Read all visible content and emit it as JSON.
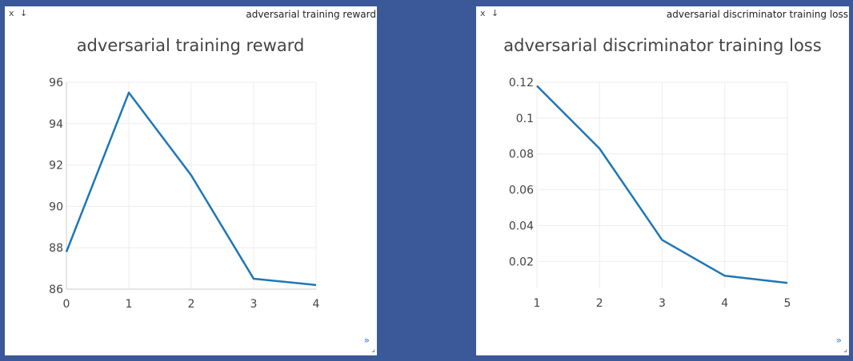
{
  "panes": [
    {
      "header_title": "adversarial training reward",
      "close_label": "x",
      "download_label": "↓",
      "expand_label": "»",
      "resize_label": "⌟",
      "chart_data": {
        "type": "line",
        "title": "adversarial training reward",
        "x": [
          0,
          1,
          2,
          3,
          4
        ],
        "series": [
          {
            "values": [
              87.8,
              95.5,
              91.5,
              86.5,
              86.2
            ]
          }
        ],
        "xlim": [
          0,
          4
        ],
        "ylim": [
          86,
          96
        ],
        "xticks": [
          "0",
          "1",
          "2",
          "3",
          "4"
        ],
        "yticks": [
          "86",
          "88",
          "90",
          "92",
          "94",
          "96"
        ],
        "grid": true,
        "color": "#1f77b4"
      }
    },
    {
      "header_title": "adversarial discriminator training loss",
      "close_label": "x",
      "download_label": "↓",
      "expand_label": "»",
      "resize_label": "⌟",
      "chart_data": {
        "type": "line",
        "title": "adversarial discriminator training loss",
        "x": [
          1,
          2,
          3,
          4,
          5
        ],
        "series": [
          {
            "values": [
              0.118,
              0.083,
              0.032,
              0.012,
              0.008
            ]
          }
        ],
        "xlim": [
          1,
          5
        ],
        "ylim": [
          0.005,
          0.12
        ],
        "xticks": [
          "1",
          "2",
          "3",
          "4",
          "5"
        ],
        "yticks": [
          "0.02",
          "0.04",
          "0.06",
          "0.08",
          "0.1",
          "0.12"
        ],
        "grid": true,
        "color": "#1f77b4"
      }
    }
  ]
}
